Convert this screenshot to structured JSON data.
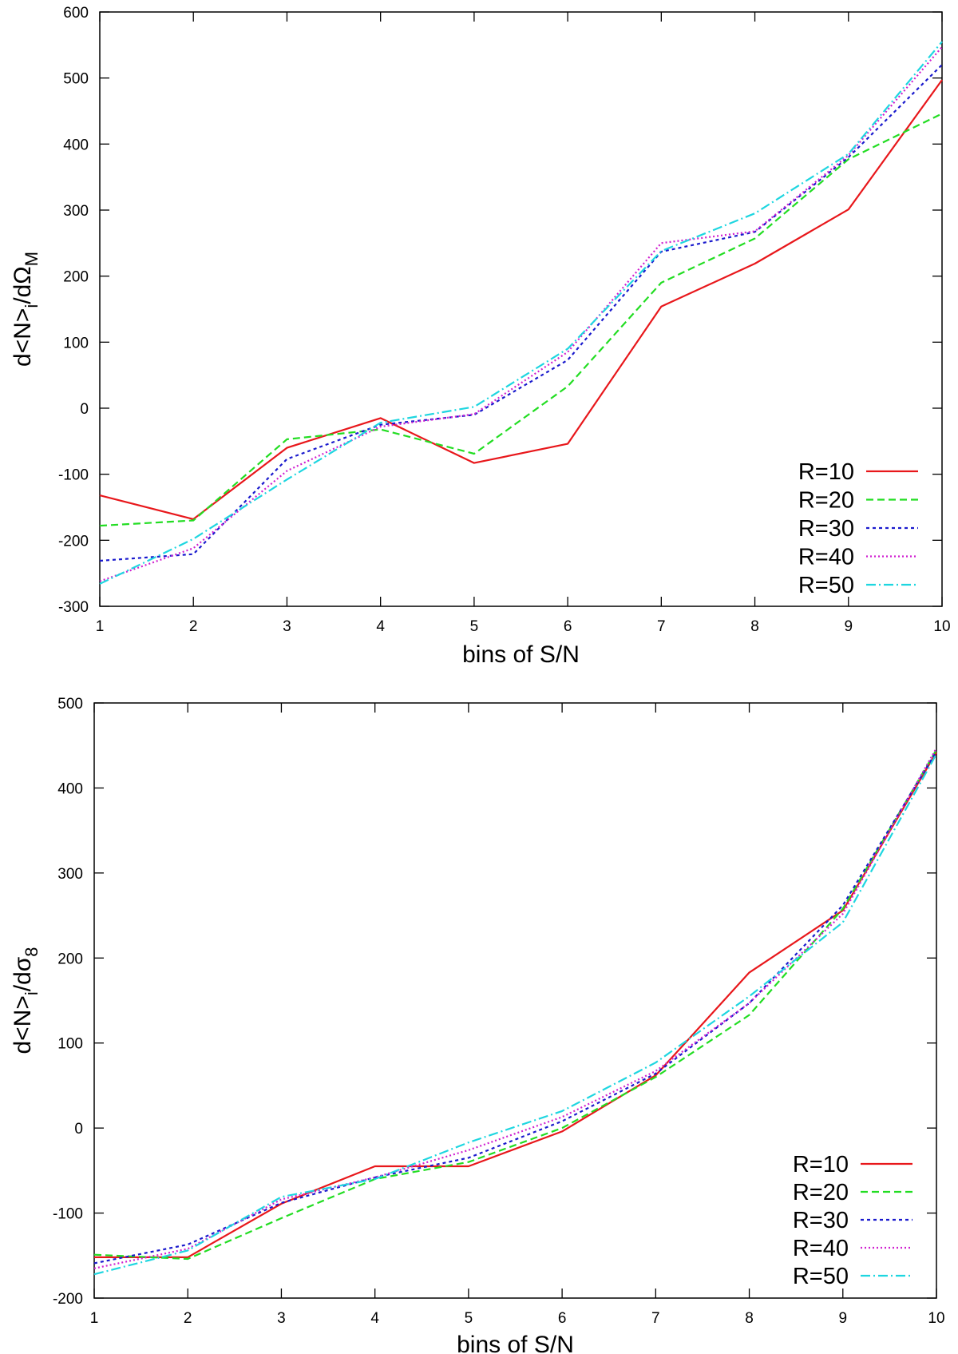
{
  "chart_data": [
    {
      "type": "line",
      "xlabel": "bins of S/N",
      "ylabel_main": "d<N>",
      "ylabel_sub": "i",
      "ylabel_mid": "/dΩ",
      "ylabel_tail": "M",
      "xlim": [
        1,
        10
      ],
      "ylim": [
        -300,
        600
      ],
      "xticks": [
        1,
        2,
        3,
        4,
        5,
        6,
        7,
        8,
        9,
        10
      ],
      "yticks": [
        -300,
        -200,
        -100,
        0,
        100,
        200,
        300,
        400,
        500,
        600
      ],
      "grid": false,
      "legend_position": "bottom-right",
      "x": [
        1,
        2,
        3,
        4,
        5,
        6,
        7,
        8,
        9,
        10
      ],
      "series": [
        {
          "name": "R=10",
          "color": "#e8171b",
          "dash": "solid",
          "values": [
            -132,
            -168,
            -60,
            -15,
            -83,
            -54,
            154,
            219,
            301,
            497
          ]
        },
        {
          "name": "R=20",
          "color": "#22dd22",
          "dash": "dashed",
          "values": [
            -178,
            -170,
            -47,
            -32,
            -69,
            33,
            190,
            257,
            377,
            446
          ]
        },
        {
          "name": "R=30",
          "color": "#1a1acd",
          "dash": "dotted-short",
          "values": [
            -231,
            -221,
            -77,
            -25,
            -10,
            73,
            237,
            267,
            380,
            520
          ]
        },
        {
          "name": "R=40",
          "color": "#d020d0",
          "dash": "dotted",
          "values": [
            -262,
            -212,
            -95,
            -28,
            -9,
            85,
            250,
            268,
            383,
            547
          ]
        },
        {
          "name": "R=50",
          "color": "#1ed6e0",
          "dash": "dash-dot",
          "values": [
            -266,
            -198,
            -108,
            -22,
            2,
            90,
            238,
            295,
            385,
            555
          ]
        }
      ]
    },
    {
      "type": "line",
      "xlabel": "bins of S/N",
      "ylabel_main": "d<N>",
      "ylabel_sub": "i",
      "ylabel_mid": "/dσ",
      "ylabel_tail": "8",
      "xlim": [
        1,
        10
      ],
      "ylim": [
        -200,
        500
      ],
      "xticks": [
        1,
        2,
        3,
        4,
        5,
        6,
        7,
        8,
        9,
        10
      ],
      "yticks": [
        -200,
        -100,
        0,
        100,
        200,
        300,
        400,
        500
      ],
      "grid": false,
      "legend_position": "bottom-right",
      "x": [
        1,
        2,
        3,
        4,
        5,
        6,
        7,
        8,
        9,
        10
      ],
      "series": [
        {
          "name": "R=10",
          "color": "#e8171b",
          "dash": "solid",
          "values": [
            -152,
            -152,
            -89,
            -45,
            -45,
            -4,
            62,
            183,
            256,
            442
          ]
        },
        {
          "name": "R=20",
          "color": "#22dd22",
          "dash": "dashed",
          "values": [
            -149,
            -154,
            -106,
            -60,
            -40,
            0,
            60,
            133,
            258,
            445
          ]
        },
        {
          "name": "R=30",
          "color": "#1a1acd",
          "dash": "dotted-short",
          "values": [
            -159,
            -137,
            -88,
            -58,
            -35,
            8,
            64,
            147,
            262,
            443
          ]
        },
        {
          "name": "R=40",
          "color": "#d020d0",
          "dash": "dotted",
          "values": [
            -165,
            -142,
            -84,
            -58,
            -26,
            13,
            67,
            147,
            252,
            447
          ]
        },
        {
          "name": "R=50",
          "color": "#1ed6e0",
          "dash": "dash-dot",
          "values": [
            -172,
            -144,
            -81,
            -60,
            -17,
            20,
            77,
            155,
            242,
            440
          ]
        }
      ]
    }
  ]
}
